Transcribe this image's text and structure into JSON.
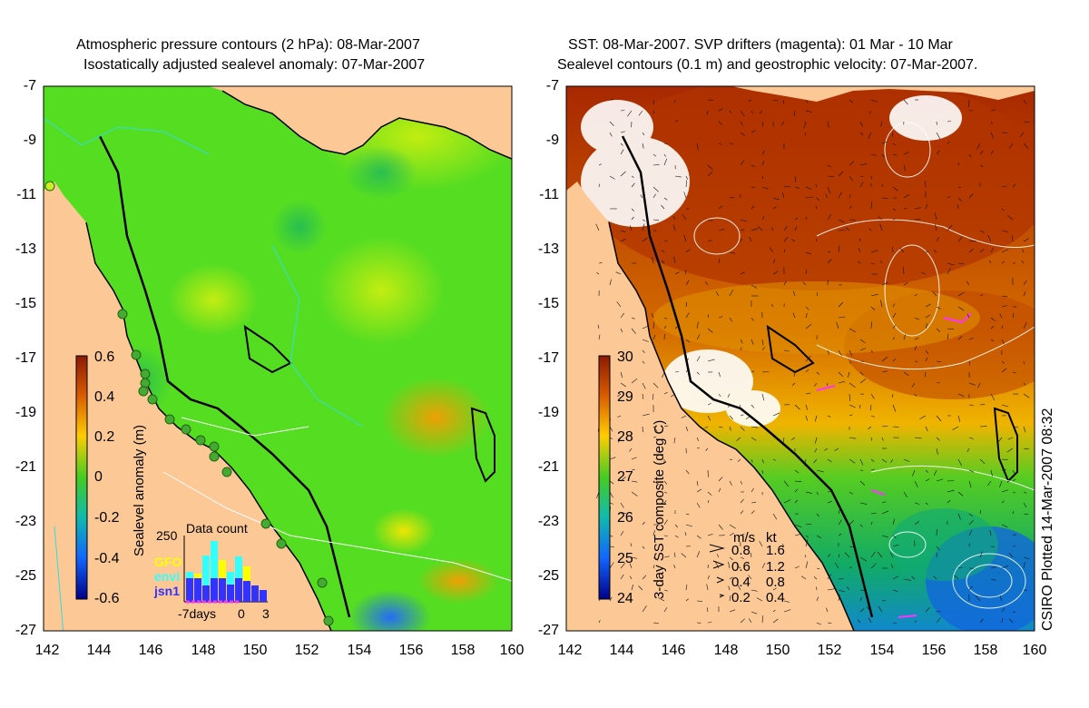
{
  "left_panel": {
    "title_line1": "Atmospheric pressure contours (2 hPa): 08-Mar-2007",
    "title_line2": "Isostatically adjusted sealevel anomaly: 07-Mar-2007",
    "colorbar_label": "Sealevel anomaly (m)",
    "colorbar_ticks": [
      "0.6",
      "0.4",
      "0.2",
      "0",
      "-0.2",
      "-0.4",
      "-0.6"
    ],
    "data_count": {
      "title": "Data count",
      "ymax_label": "250",
      "legend": [
        "GFO",
        "envi",
        "jsn1"
      ],
      "legend_colors": [
        "#ffff00",
        "#33ffff",
        "#3333ff"
      ],
      "x_labels": [
        "-7days",
        "0",
        "3"
      ]
    }
  },
  "right_panel": {
    "title_line1": "SST: 08-Mar-2007. SVP drifters (magenta): 01 Mar - 10 Mar",
    "title_line2": "Sealevel contours (0.1 m) and geostrophic velocity: 07-Mar-2007.",
    "colorbar_label": "3-day SST composite (deg C)",
    "colorbar_ticks": [
      "30",
      "29",
      "28",
      "27",
      "26",
      "25",
      "24"
    ],
    "velocity_legend": {
      "header_ms": "m/s",
      "header_kt": "kt",
      "rows": [
        {
          "ms": "0.8",
          "kt": "1.6"
        },
        {
          "ms": "0.6",
          "kt": "1.2"
        },
        {
          "ms": "0.4",
          "kt": "0.8"
        },
        {
          "ms": "0.2",
          "kt": "0.4"
        }
      ]
    }
  },
  "axes": {
    "y_ticks": [
      "-7",
      "-9",
      "-11",
      "-13",
      "-15",
      "-17",
      "-19",
      "-21",
      "-23",
      "-25",
      "-27"
    ],
    "x_ticks": [
      "142",
      "144",
      "146",
      "148",
      "150",
      "152",
      "154",
      "156",
      "158",
      "160"
    ],
    "lon_range": [
      142,
      160
    ],
    "lat_range": [
      -27,
      -7
    ]
  },
  "credit": "CSIRO Plotted 14-Mar-2007 08:32",
  "colors": {
    "land": "#fbc896",
    "sea_base_left": "#55dd22",
    "sst_warm": "#c04a00",
    "sst_cool": "#22bb55"
  }
}
